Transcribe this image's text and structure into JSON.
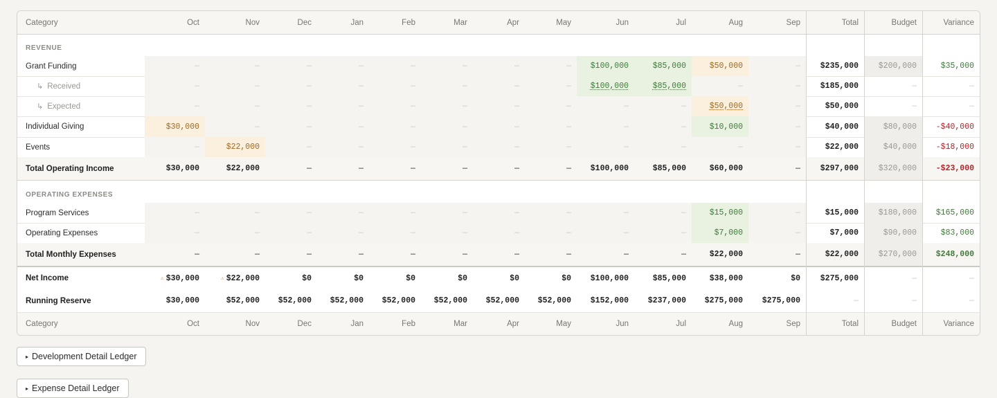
{
  "months": [
    "Oct",
    "Nov",
    "Dec",
    "Jan",
    "Feb",
    "Mar",
    "Apr",
    "May",
    "Jun",
    "Jul",
    "Aug",
    "Sep"
  ],
  "header": {
    "category": "Category",
    "total": "Total",
    "budget": "Budget",
    "variance": "Variance"
  },
  "dash": "—",
  "sections": {
    "revenue": "REVENUE",
    "opex": "OPERATING EXPENSES"
  },
  "rows": {
    "grant": {
      "label": "Grant Funding",
      "m": [
        "—",
        "—",
        "—",
        "—",
        "—",
        "—",
        "—",
        "—",
        "$100,000",
        "$85,000",
        "$50,000",
        "—"
      ],
      "total": "$235,000",
      "budget": "$200,000",
      "variance": "$35,000"
    },
    "received": {
      "label": "Received",
      "m": [
        "—",
        "—",
        "—",
        "—",
        "—",
        "—",
        "—",
        "—",
        "$100,000",
        "$85,000",
        "—",
        "—"
      ],
      "total": "$185,000",
      "budget": "—",
      "variance": "—"
    },
    "expected": {
      "label": "Expected",
      "m": [
        "—",
        "—",
        "—",
        "—",
        "—",
        "—",
        "—",
        "—",
        "—",
        "—",
        "$50,000",
        "—"
      ],
      "total": "$50,000",
      "budget": "—",
      "variance": "—"
    },
    "individual": {
      "label": "Individual Giving",
      "m": [
        "$30,000",
        "—",
        "—",
        "—",
        "—",
        "—",
        "—",
        "—",
        "—",
        "—",
        "$10,000",
        "—"
      ],
      "total": "$40,000",
      "budget": "$80,000",
      "variance": "-$40,000"
    },
    "events": {
      "label": "Events",
      "m": [
        "—",
        "$22,000",
        "—",
        "—",
        "—",
        "—",
        "—",
        "—",
        "—",
        "—",
        "—",
        "—"
      ],
      "total": "$22,000",
      "budget": "$40,000",
      "variance": "-$18,000"
    },
    "total_income": {
      "label": "Total Operating Income",
      "m": [
        "$30,000",
        "$22,000",
        "—",
        "—",
        "—",
        "—",
        "—",
        "—",
        "$100,000",
        "$85,000",
        "$60,000",
        "—"
      ],
      "total": "$297,000",
      "budget": "$320,000",
      "variance": "-$23,000"
    },
    "program": {
      "label": "Program Services",
      "m": [
        "—",
        "—",
        "—",
        "—",
        "—",
        "—",
        "—",
        "—",
        "—",
        "—",
        "$15,000",
        "—"
      ],
      "total": "$15,000",
      "budget": "$180,000",
      "variance": "$165,000"
    },
    "opex": {
      "label": "Operating Expenses",
      "m": [
        "—",
        "—",
        "—",
        "—",
        "—",
        "—",
        "—",
        "—",
        "—",
        "—",
        "$7,000",
        "—"
      ],
      "total": "$7,000",
      "budget": "$90,000",
      "variance": "$83,000"
    },
    "total_exp": {
      "label": "Total Monthly Expenses",
      "m": [
        "—",
        "—",
        "—",
        "—",
        "—",
        "—",
        "—",
        "—",
        "—",
        "—",
        "$22,000",
        "—"
      ],
      "total": "$22,000",
      "budget": "$270,000",
      "variance": "$248,000"
    },
    "net": {
      "label": "Net Income",
      "m": [
        "$30,000",
        "$22,000",
        "$0",
        "$0",
        "$0",
        "$0",
        "$0",
        "$0",
        "$100,000",
        "$85,000",
        "$38,000",
        "$0"
      ],
      "total": "$275,000",
      "budget": "—",
      "variance": "—",
      "warn_icon": "warning-icon"
    },
    "reserve": {
      "label": "Running Reserve",
      "m": [
        "$30,000",
        "$52,000",
        "$52,000",
        "$52,000",
        "$52,000",
        "$52,000",
        "$52,000",
        "$52,000",
        "$152,000",
        "$237,000",
        "$275,000",
        "$275,000"
      ],
      "total": "—",
      "budget": "—",
      "variance": "—"
    }
  },
  "buttons": {
    "dev_ledger": "Development Detail Ledger",
    "exp_ledger": "Expense Detail Ledger"
  },
  "colors": {
    "positive": "#3f7a3a",
    "negative": "#b2242a",
    "received_tint": "#e9f2e1",
    "expected_tint": "#fbefdd"
  }
}
